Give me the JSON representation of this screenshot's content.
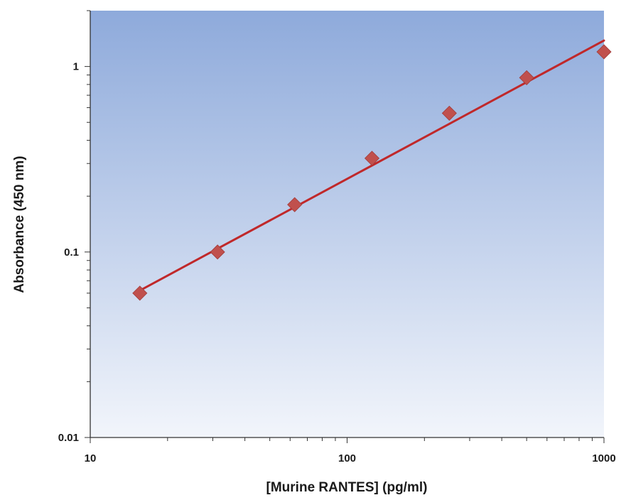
{
  "chart_data": {
    "type": "scatter",
    "title": "",
    "xlabel": "[Murine RANTES] (pg/ml)",
    "ylabel": "Absorbance (450 nm)",
    "x_scale": "log",
    "y_scale": "log",
    "xlim": [
      10,
      1000
    ],
    "ylim": [
      0.01,
      2
    ],
    "x_ticks": [
      {
        "value": 10,
        "label": "10"
      },
      {
        "value": 100,
        "label": "100"
      },
      {
        "value": 1000,
        "label": "1000"
      }
    ],
    "y_ticks": [
      {
        "value": 0.01,
        "label": "0.01"
      },
      {
        "value": 0.1,
        "label": "0.1"
      },
      {
        "value": 1,
        "label": "1"
      }
    ],
    "grid": false,
    "legend": "none",
    "series": [
      {
        "marker": "diamond",
        "color": "#c0504d",
        "x": [
          15.6,
          31.3,
          62.5,
          125,
          250,
          500,
          1000
        ],
        "y": [
          0.06,
          0.1,
          0.18,
          0.32,
          0.56,
          0.87,
          1.2
        ]
      }
    ],
    "trendline": {
      "color": "#c0282a",
      "x": [
        15.6,
        1000
      ],
      "y": [
        0.062,
        1.38
      ]
    },
    "plot_background": {
      "top": "#8eaadb",
      "bottom": "#f2f5fb"
    }
  }
}
